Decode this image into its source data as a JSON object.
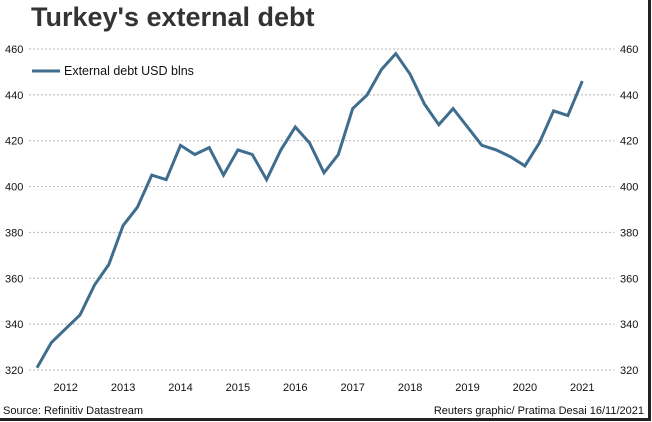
{
  "chart_data": {
    "type": "line",
    "title": "Turkey's external debt",
    "source": "Source: Refinitiv Datastream",
    "credit": "Reuters graphic/ Pratima Desai 16/11/2021",
    "legend": {
      "position": "top-left"
    },
    "grid": true,
    "color": "#3e6d8e",
    "ylim": [
      320,
      460
    ],
    "yticks": [
      320,
      340,
      360,
      380,
      400,
      420,
      440,
      460
    ],
    "xtick_labels": [
      "2012",
      "2013",
      "2014",
      "2015",
      "2016",
      "2017",
      "2018",
      "2019",
      "2020",
      "2021"
    ],
    "series": [
      {
        "name": "External debt USD blns",
        "x": [
          "2011Q3",
          "2011Q4",
          "2012Q1",
          "2012Q2",
          "2012Q3",
          "2012Q4",
          "2013Q1",
          "2013Q2",
          "2013Q3",
          "2013Q4",
          "2014Q1",
          "2014Q2",
          "2014Q3",
          "2014Q4",
          "2015Q1",
          "2015Q2",
          "2015Q3",
          "2015Q4",
          "2016Q1",
          "2016Q2",
          "2016Q3",
          "2016Q4",
          "2017Q1",
          "2017Q2",
          "2017Q3",
          "2017Q4",
          "2018Q1",
          "2018Q2",
          "2018Q3",
          "2018Q4",
          "2019Q1",
          "2019Q2",
          "2019Q3",
          "2019Q4",
          "2020Q1",
          "2020Q2",
          "2020Q3",
          "2020Q4",
          "2021Q1"
        ],
        "values": [
          321,
          332,
          338,
          344,
          357,
          366,
          383,
          391,
          405,
          403,
          418,
          414,
          417,
          405,
          416,
          414,
          403,
          416,
          426,
          419,
          406,
          414,
          434,
          440,
          451,
          458,
          449,
          436,
          427,
          434,
          426,
          418,
          416,
          413,
          409,
          419,
          433,
          431,
          446
        ]
      }
    ]
  }
}
